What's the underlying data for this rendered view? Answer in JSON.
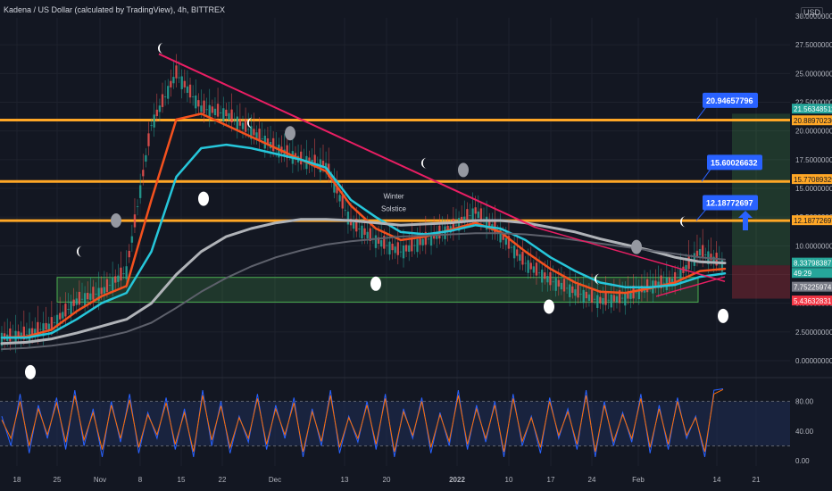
{
  "title": "Kadena / US Dollar (calculated by TradingView), 4h, BITTREX",
  "currency": "USD",
  "colors": {
    "background": "#131722",
    "grid": "#1e222d",
    "orange_line": "#ffa726",
    "trend_line": "#e91e63",
    "ema_red": "#f4511e",
    "ema_cyan": "#26c6da",
    "sma_gray": "#9e9e9e",
    "sma_dark": "#5d606b",
    "rsi_fill": "#1c2a4a",
    "stoch_k": "#2962ff",
    "stoch_d": "#ff6d00",
    "zone_green": "#4caf50",
    "callout": "#2962ff"
  },
  "chart_data": [
    {
      "type": "line",
      "title": "Kadena / US Dollar (calculated by TradingView), 4h, BITTREX",
      "y_axis_ticks": [
        "27.50000000",
        "25.00000000",
        "22.50000000",
        "20.00000000",
        "17.50000000",
        "15.00000000",
        "12.50000000",
        "10.00000000",
        "7.50000000",
        "5.00000000",
        "2.50000000",
        "0.00000000"
      ],
      "y_axis_top_tick": "30.00000000",
      "ylim": [
        0,
        30
      ],
      "x_axis_ticks": [
        "18",
        "25",
        "Nov",
        "8",
        "15",
        "22",
        "Dec",
        "13",
        "20",
        "2022",
        "10",
        "17",
        "24",
        "Feb",
        "14",
        "21"
      ],
      "horizontal_levels": [
        20.94657796,
        15.60026632,
        12.18772697
      ],
      "price_tags": [
        {
          "label": "21.56348511",
          "color": "#26a69a"
        },
        {
          "label": "20.88970230",
          "color": "#ffa726"
        },
        {
          "label": "15.77089329",
          "color": "#ffa726"
        },
        {
          "label": "12.18772697",
          "color": "#ffa726"
        },
        {
          "label": "8.33798387",
          "color": "#26a69a"
        },
        {
          "label": "49:29",
          "color": "#26a69a"
        },
        {
          "label": "7.75225974",
          "color": "#787b86"
        },
        {
          "label": "5.43632831",
          "color": "#f23645"
        }
      ],
      "callouts": [
        "20.94657796",
        "15.60026632",
        "12.18772697"
      ],
      "annotations": [
        "Winter Solstice"
      ],
      "series": [
        {
          "values": [
            2.0,
            2.3,
            3.1,
            5.2,
            6.0,
            7.8,
            20.5,
            25.0,
            22.0,
            21.5,
            20.0,
            18.5,
            17.5,
            17.0,
            12.0,
            10.5,
            9.5,
            10.5,
            11.5,
            13.0,
            11.0,
            8.5,
            7.0,
            6.0,
            5.2,
            5.5,
            6.5,
            7.0,
            9.5,
            8.3
          ]
        },
        {
          "values": [
            2.0,
            2.1,
            2.7,
            4.3,
            5.6,
            6.5,
            14.0,
            21.0,
            21.5,
            20.5,
            19.5,
            18.5,
            17.5,
            16.5,
            13.5,
            11.5,
            10.5,
            10.8,
            11.4,
            12.0,
            11.2,
            9.5,
            8.0,
            6.8,
            6.0,
            5.9,
            6.3,
            6.8,
            7.8,
            8.0
          ]
        },
        {
          "values": [
            2.0,
            2.0,
            2.4,
            3.6,
            5.0,
            5.9,
            9.5,
            16.0,
            18.5,
            18.8,
            18.5,
            18.0,
            17.5,
            16.8,
            14.0,
            12.5,
            11.2,
            11.0,
            11.3,
            11.8,
            11.5,
            10.5,
            9.0,
            7.8,
            6.8,
            6.4,
            6.4,
            6.6,
            7.3,
            7.6
          ]
        },
        {
          "values": [
            1.5,
            1.6,
            1.9,
            2.4,
            3.0,
            3.6,
            5.0,
            7.5,
            9.5,
            10.8,
            11.5,
            12.0,
            12.3,
            12.3,
            12.2,
            12.0,
            11.8,
            11.9,
            12.0,
            12.2,
            12.2,
            12.0,
            11.6,
            11.2,
            10.6,
            10.1,
            9.6,
            9.0,
            8.6,
            8.5
          ]
        },
        {
          "values": [
            1.0,
            1.1,
            1.3,
            1.6,
            2.0,
            2.5,
            3.3,
            4.6,
            6.0,
            7.2,
            8.2,
            9.0,
            9.6,
            10.1,
            10.4,
            10.6,
            10.8,
            10.9,
            11.0,
            11.1,
            11.1,
            11.0,
            10.8,
            10.5,
            10.2,
            9.9,
            9.6,
            9.3,
            9.0,
            8.8
          ]
        }
      ]
    },
    {
      "type": "line",
      "y_axis_ticks": [
        "80.00",
        "40.00",
        "0.00"
      ],
      "ylim": [
        0,
        100
      ],
      "series": [
        {
          "values": [
            60,
            20,
            90,
            10,
            75,
            30,
            85,
            15,
            95,
            20,
            70,
            5,
            80,
            25,
            90,
            10,
            65,
            30,
            85,
            15,
            70,
            5,
            95,
            20,
            80,
            10,
            60,
            25,
            90,
            15,
            75,
            30,
            85,
            5,
            70,
            20,
            95,
            10,
            60,
            25,
            80,
            15,
            90,
            5,
            70,
            30,
            85,
            10,
            65,
            20,
            95,
            15,
            75,
            25,
            80,
            5,
            90,
            20,
            60,
            10,
            85,
            30,
            70,
            15,
            95,
            5,
            80,
            20,
            65,
            25,
            90,
            10,
            75,
            15,
            85,
            30,
            60,
            5,
            95,
            97
          ]
        },
        {
          "values": [
            55,
            30,
            80,
            20,
            70,
            35,
            78,
            25,
            88,
            28,
            65,
            15,
            75,
            30,
            82,
            18,
            62,
            35,
            78,
            22,
            65,
            12,
            88,
            28,
            74,
            18,
            58,
            30,
            84,
            22,
            70,
            35,
            78,
            12,
            66,
            26,
            88,
            18,
            58,
            30,
            75,
            22,
            84,
            12,
            66,
            34,
            80,
            18,
            62,
            26,
            88,
            22,
            70,
            30,
            75,
            12,
            84,
            26,
            58,
            18,
            80,
            34,
            66,
            22,
            88,
            12,
            75,
            26,
            62,
            30,
            84,
            18,
            70,
            22,
            80,
            34,
            58,
            12,
            90,
            96
          ]
        }
      ]
    }
  ]
}
